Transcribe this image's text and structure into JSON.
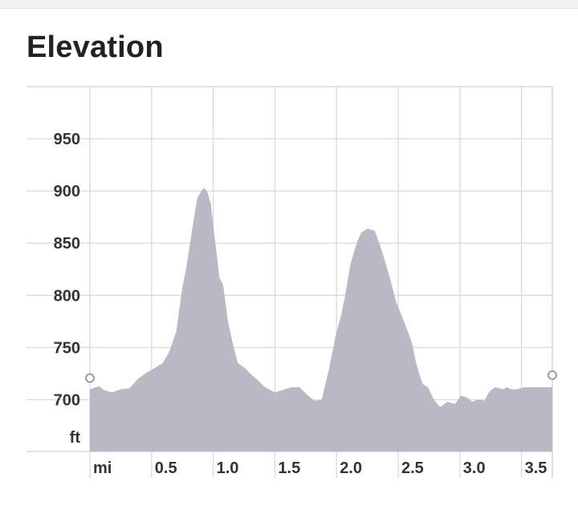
{
  "header": {
    "title": "Elevation"
  },
  "chart_data": {
    "type": "area",
    "title": "Elevation",
    "xlabel": "mi",
    "ylabel": "ft",
    "xlim": [
      0,
      3.75
    ],
    "ylim": [
      650,
      995
    ],
    "x_ticks": [
      "0.5",
      "1.0",
      "1.5",
      "2.0",
      "2.5",
      "3.0",
      "3.5"
    ],
    "y_ticks": [
      "700",
      "750",
      "800",
      "850",
      "900",
      "950"
    ],
    "grid": true,
    "fill_color": "#b9b8c5",
    "start_marker": {
      "x": 0,
      "y": 710
    },
    "end_marker": {
      "x": 3.75,
      "y": 712
    },
    "series": [
      {
        "x": [
          0,
          0.07,
          0.12,
          0.18,
          0.25,
          0.32,
          0.39,
          0.46,
          0.52,
          0.59,
          0.64,
          0.7,
          0.75,
          0.78,
          0.82,
          0.87,
          0.92,
          0.95,
          0.98,
          1.01,
          1.03,
          1.05,
          1.08,
          1.12,
          1.16,
          1.2,
          1.26,
          1.3,
          1.35,
          1.42,
          1.5,
          1.58,
          1.64,
          1.7,
          1.76,
          1.82,
          1.88,
          1.94,
          1.99,
          2.04,
          2.07,
          2.11,
          2.14,
          2.17,
          2.2,
          2.25,
          2.31,
          2.37,
          2.43,
          2.48,
          2.53,
          2.57,
          2.61,
          2.64,
          2.67,
          2.7,
          2.74,
          2.79,
          2.84,
          2.9,
          2.96,
          3.01,
          3.06,
          3.1,
          3.14,
          3.17,
          3.2,
          3.23,
          3.26,
          3.29,
          3.32,
          3.35,
          3.38,
          3.42,
          3.46,
          3.49,
          3.52,
          3.55,
          3.58,
          3.62,
          3.66,
          3.7,
          3.75
        ],
        "y": [
          710,
          713,
          709,
          707,
          710,
          711,
          720,
          726,
          730,
          735,
          745,
          765,
          808,
          825,
          856,
          893,
          903,
          900,
          888,
          857,
          838,
          817,
          810,
          775,
          753,
          735,
          730,
          725,
          720,
          712,
          707,
          710,
          712,
          712,
          705,
          699,
          700,
          730,
          760,
          782,
          800,
          828,
          841,
          852,
          860,
          864,
          862,
          842,
          818,
          795,
          780,
          768,
          755,
          738,
          725,
          715,
          712,
          700,
          693,
          698,
          696,
          704,
          702,
          698,
          700,
          700,
          699,
          706,
          710,
          712,
          711,
          710,
          712,
          710,
          710,
          711,
          712,
          712,
          712,
          712,
          712,
          712,
          712
        ]
      }
    ]
  }
}
